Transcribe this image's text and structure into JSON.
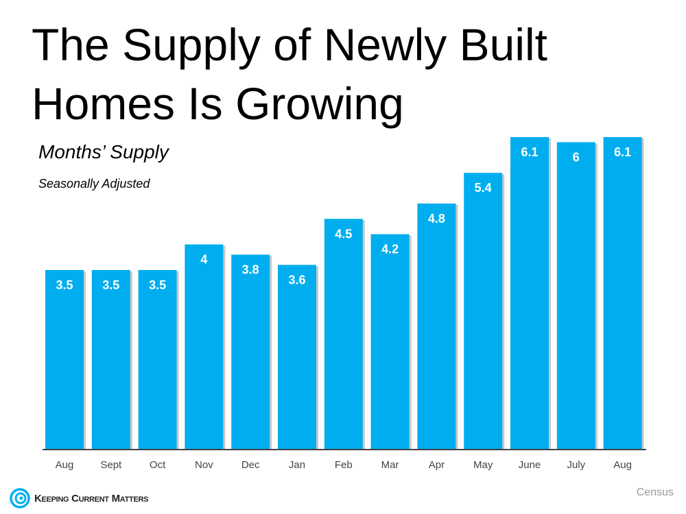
{
  "chart_data": {
    "type": "bar",
    "title": "The Supply of Newly Built Homes Is Growing",
    "subtitle": "Months’ Supply",
    "subtitle2": "Seasonally Adjusted",
    "categories": [
      "Aug",
      "Sept",
      "Oct",
      "Nov",
      "Dec",
      "Jan",
      "Feb",
      "Mar",
      "Apr",
      "May",
      "June",
      "July",
      "Aug"
    ],
    "values": [
      3.5,
      3.5,
      3.5,
      4,
      3.8,
      3.6,
      4.5,
      4.2,
      4.8,
      5.4,
      6.1,
      6,
      6.1
    ],
    "data_labels": [
      "3.5",
      "3.5",
      "3.5",
      "4",
      "3.8",
      "3.6",
      "4.5",
      "4.2",
      "4.8",
      "5.4",
      "6.1",
      "6",
      "6.1"
    ],
    "ylim": [
      0,
      6.1
    ],
    "grid": false,
    "bar_color": "#00AEEF",
    "label_color": "#FFFFFF"
  },
  "footer": {
    "logo_text": "Keeping Current Matters",
    "source": "Census"
  }
}
